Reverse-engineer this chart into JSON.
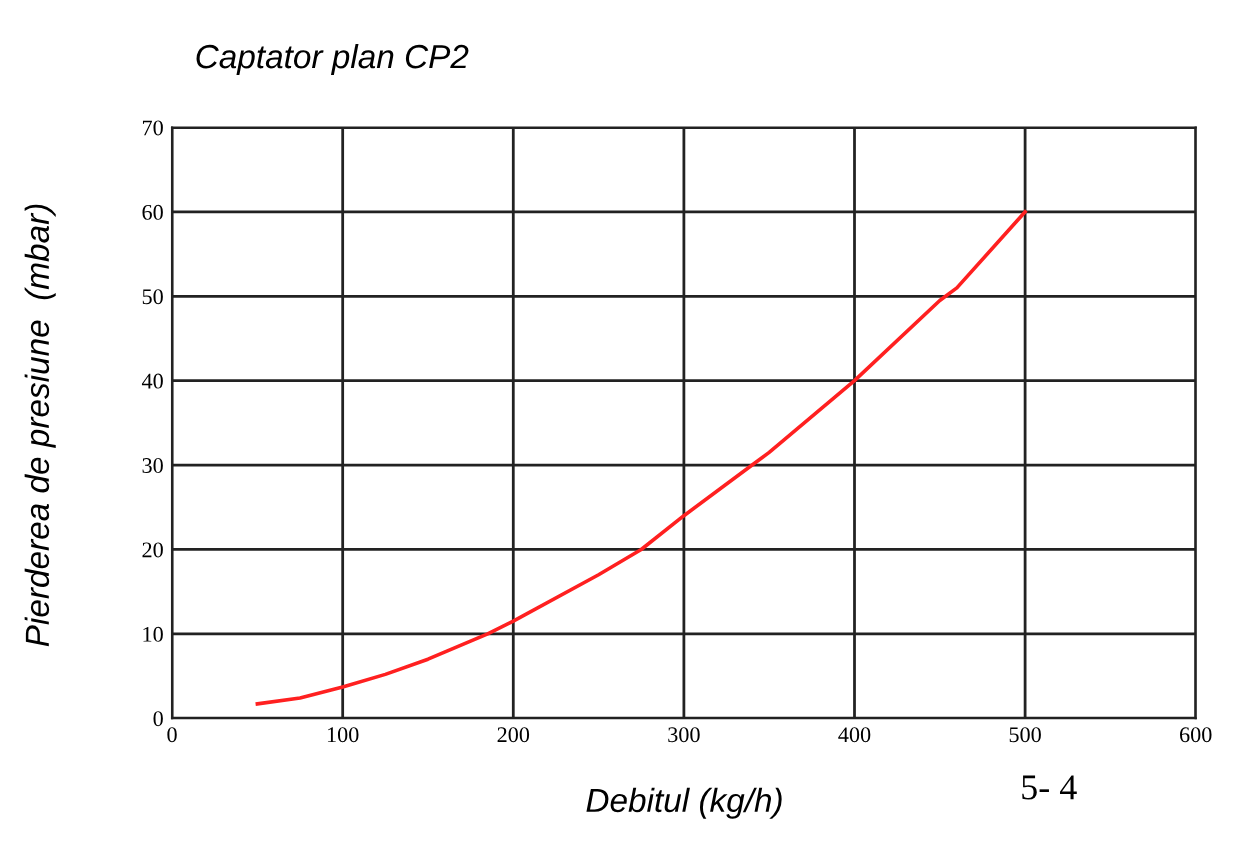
{
  "chart_data": {
    "type": "line",
    "title": "Captator plan CP2",
    "xlabel": "Debitul (kg/h)",
    "ylabel": "Pierderea de presiune  (mbar)",
    "annotations": [
      "5- 4"
    ],
    "series": [
      {
        "color": "#ff2020",
        "x": [
          50,
          75,
          100,
          125,
          150,
          185,
          200,
          250,
          275,
          300,
          340,
          350,
          400,
          450,
          460,
          500
        ],
        "values": [
          1.7,
          2.4,
          3.7,
          5.2,
          7,
          10,
          11.5,
          17,
          20,
          24,
          30,
          31.5,
          40,
          49.5,
          51,
          60
        ]
      }
    ],
    "xlim": [
      0,
      600
    ],
    "ylim": [
      0,
      70
    ],
    "xticks": [
      0,
      100,
      200,
      300,
      400,
      500,
      600
    ],
    "yticks": [
      0,
      10,
      20,
      30,
      40,
      50,
      60,
      70
    ],
    "grid": true,
    "marker": "none",
    "line_style": "solid",
    "legend": false
  }
}
